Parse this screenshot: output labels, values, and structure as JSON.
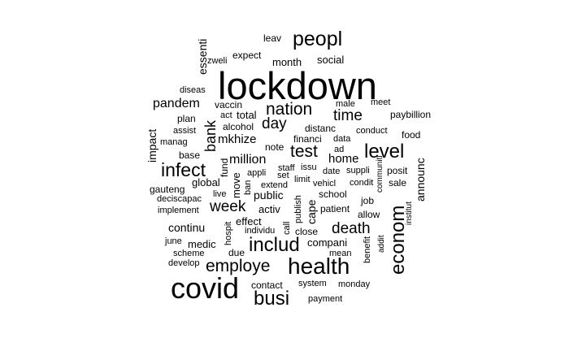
{
  "words": {
    "lockdown": "lockdown",
    "covid": "covid",
    "health": "health",
    "peopl": "peopl",
    "econom": "econom",
    "includ": "includ",
    "busi": "busi",
    "level": "level",
    "infect": "infect",
    "employe": "employe",
    "nation": "nation",
    "test": "test",
    "death": "death",
    "day": "day",
    "time": "time",
    "week": "week",
    "bank": "bank",
    "million": "million",
    "pandem": "pandem",
    "mkhize": "mkhize",
    "home": "home",
    "announc": "announc",
    "impact": "impact",
    "public": "public",
    "continu": "continu",
    "essenti": "essenti",
    "cape": "cape",
    "compani": "compani",
    "global": "global",
    "medic": "medic",
    "effect": "effect",
    "activ": "activ",
    "social": "social",
    "month": "month",
    "move": "move",
    "total": "total",
    "vaccin": "vaccin",
    "financi": "financi",
    "leav": "leav",
    "expect": "expect",
    "fund": "fund",
    "gauteng": "gauteng",
    "plan": "plan",
    "alcohol": "alcohol",
    "note": "note",
    "distanc": "distanc",
    "allow": "allow",
    "close": "close",
    "patient": "patient",
    "school": "school",
    "sale": "sale",
    "posit": "posit",
    "paybillion": "paybillion",
    "food": "food",
    "base": "base",
    "contact": "contact",
    "monday": "monday",
    "system": "system",
    "payment": "payment",
    "due": "due",
    "job": "job",
    "mean": "mean",
    "data": "data",
    "issu": "issu",
    "staff": "staff",
    "extend": "extend",
    "limit": "limit",
    "vehicl": "vehicl",
    "condit": "condit",
    "suppli": "suppli",
    "date": "date",
    "set": "set",
    "appli": "appli",
    "ad": "ad",
    "live": "live",
    "individu": "individu",
    "scheme": "scheme",
    "develop": "develop",
    "june": "june",
    "implement": "implement",
    "deciscapac": "deciscapac",
    "manag": "manag",
    "assist": "assist",
    "act": "act",
    "diseas": "diseas",
    "zweli": "zweli",
    "male": "male",
    "meet": "meet",
    "conduct": "conduct",
    "ban": "ban",
    "publish": "publish",
    "call": "call",
    "hospit": "hospit",
    "benefit": "benefit",
    "addit": "addit",
    "communiti": "communiti",
    "institut": "institut"
  }
}
